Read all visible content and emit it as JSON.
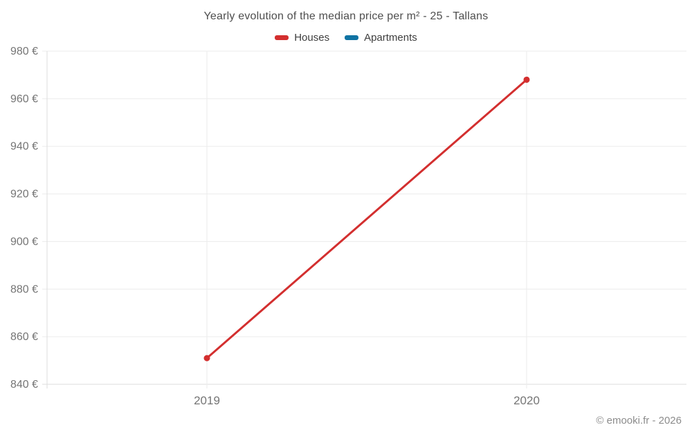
{
  "chart": {
    "title": "Yearly evolution of the median price per m² - 25 - Tallans"
  },
  "footer": {
    "copyright": "© emooki.fr - 2026"
  },
  "colors": {
    "houses": "#d32f2f",
    "apartments": "#1073a3",
    "gridline": "#ebebeb",
    "axis_line": "#dedede",
    "tick_label": "#757575",
    "title_text": "#4e4e4e",
    "legend_text": "#3d3d3d",
    "footer_text": "#8c8c8c"
  },
  "chart_data": {
    "type": "line",
    "title": "Yearly evolution of the median price per m² - 25 - Tallans",
    "categories": [
      "2019",
      "2020"
    ],
    "series": [
      {
        "name": "Houses",
        "color": "#d32f2f",
        "values": [
          851,
          968
        ]
      },
      {
        "name": "Apartments",
        "color": "#1073a3",
        "values": []
      }
    ],
    "xlabel": "",
    "ylabel": "",
    "ylim": [
      840,
      980
    ],
    "ytick_step": 20,
    "y_suffix": " €",
    "yticks": [
      840,
      860,
      880,
      900,
      920,
      940,
      960,
      980
    ],
    "ytick_labels": [
      "840 €",
      "860 €",
      "880 €",
      "900 €",
      "920 €",
      "940 €",
      "960 €",
      "980 €"
    ],
    "grid": true,
    "legend_position": "top"
  }
}
